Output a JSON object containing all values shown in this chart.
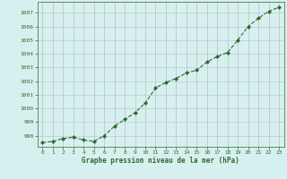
{
  "x": [
    0,
    1,
    2,
    3,
    4,
    5,
    6,
    7,
    8,
    9,
    10,
    11,
    12,
    13,
    14,
    15,
    16,
    17,
    18,
    19,
    20,
    21,
    22,
    23
  ],
  "y": [
    997.5,
    997.6,
    997.8,
    997.9,
    997.7,
    997.6,
    998.0,
    998.7,
    999.2,
    999.7,
    1000.4,
    1001.5,
    1001.9,
    1002.2,
    1002.6,
    1002.8,
    1003.4,
    1003.8,
    1004.1,
    1005.0,
    1006.0,
    1006.6,
    1007.1,
    1007.4
  ],
  "line_color": "#2d6a2d",
  "marker": "D",
  "marker_size": 2.0,
  "bg_color": "#d6f0f0",
  "grid_color": "#b0c8c8",
  "grid_color2": "#c8b0b0",
  "xlabel": "Graphe pression niveau de la mer (hPa)",
  "xlabel_color": "#2d6a2d",
  "tick_color": "#2d6a2d",
  "ytick_labels": [
    998,
    999,
    1000,
    1001,
    1002,
    1003,
    1004,
    1005,
    1006,
    1007
  ],
  "ylim": [
    997.2,
    1007.8
  ],
  "xlim": [
    -0.5,
    23.5
  ],
  "xtick_labels": [
    "0",
    "1",
    "2",
    "3",
    "4",
    "5",
    "6",
    "7",
    "8",
    "9",
    "10",
    "11",
    "12",
    "13",
    "14",
    "15",
    "16",
    "17",
    "18",
    "19",
    "20",
    "21",
    "22",
    "23"
  ]
}
